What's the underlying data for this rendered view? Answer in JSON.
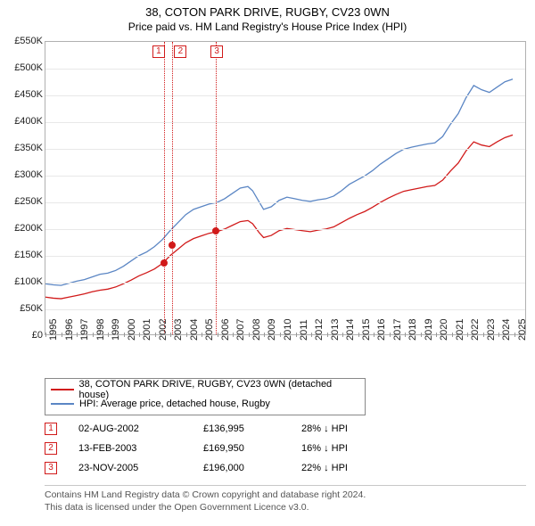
{
  "title_line1": "38, COTON PARK DRIVE, RUGBY, CV23 0WN",
  "title_line2": "Price paid vs. HM Land Registry's House Price Index (HPI)",
  "chart": {
    "type": "line",
    "xlim_year": [
      1995,
      2025.8
    ],
    "ylim": [
      0,
      550000
    ],
    "ytick_step": 50000,
    "ylabels": [
      "£0",
      "£50K",
      "£100K",
      "£150K",
      "£200K",
      "£250K",
      "£300K",
      "£350K",
      "£400K",
      "£450K",
      "£500K",
      "£550K"
    ],
    "xticks": [
      1995,
      1996,
      1997,
      1998,
      1999,
      2000,
      2001,
      2002,
      2003,
      2004,
      2005,
      2006,
      2007,
      2008,
      2009,
      2010,
      2011,
      2012,
      2013,
      2014,
      2015,
      2016,
      2017,
      2018,
      2019,
      2020,
      2021,
      2022,
      2023,
      2024,
      2025
    ],
    "grid_color": "#e8e8e8",
    "axis_color": "#b0b0b0",
    "background_color": "#ffffff",
    "series": [
      {
        "name": "hpi",
        "label": "HPI: Average price, detached house, Rugby",
        "color": "#5b86c4",
        "width": 1.3,
        "data": [
          [
            1995.0,
            95000
          ],
          [
            1995.5,
            93000
          ],
          [
            1996.0,
            92000
          ],
          [
            1996.5,
            96000
          ],
          [
            1997.0,
            100000
          ],
          [
            1997.5,
            103000
          ],
          [
            1998.0,
            108000
          ],
          [
            1998.5,
            113000
          ],
          [
            1999.0,
            115000
          ],
          [
            1999.5,
            120000
          ],
          [
            2000.0,
            128000
          ],
          [
            2000.5,
            138000
          ],
          [
            2001.0,
            148000
          ],
          [
            2001.5,
            155000
          ],
          [
            2002.0,
            165000
          ],
          [
            2002.5,
            178000
          ],
          [
            2003.0,
            195000
          ],
          [
            2003.5,
            210000
          ],
          [
            2004.0,
            225000
          ],
          [
            2004.5,
            235000
          ],
          [
            2005.0,
            240000
          ],
          [
            2005.5,
            245000
          ],
          [
            2006.0,
            248000
          ],
          [
            2006.5,
            255000
          ],
          [
            2007.0,
            265000
          ],
          [
            2007.5,
            275000
          ],
          [
            2008.0,
            278000
          ],
          [
            2008.3,
            270000
          ],
          [
            2008.7,
            250000
          ],
          [
            2009.0,
            235000
          ],
          [
            2009.5,
            240000
          ],
          [
            2010.0,
            252000
          ],
          [
            2010.5,
            258000
          ],
          [
            2011.0,
            255000
          ],
          [
            2011.5,
            252000
          ],
          [
            2012.0,
            250000
          ],
          [
            2012.5,
            253000
          ],
          [
            2013.0,
            255000
          ],
          [
            2013.5,
            260000
          ],
          [
            2014.0,
            270000
          ],
          [
            2014.5,
            282000
          ],
          [
            2015.0,
            290000
          ],
          [
            2015.5,
            298000
          ],
          [
            2016.0,
            308000
          ],
          [
            2016.5,
            320000
          ],
          [
            2017.0,
            330000
          ],
          [
            2017.5,
            340000
          ],
          [
            2018.0,
            348000
          ],
          [
            2018.5,
            352000
          ],
          [
            2019.0,
            355000
          ],
          [
            2019.5,
            358000
          ],
          [
            2020.0,
            360000
          ],
          [
            2020.5,
            372000
          ],
          [
            2021.0,
            395000
          ],
          [
            2021.5,
            415000
          ],
          [
            2022.0,
            445000
          ],
          [
            2022.5,
            468000
          ],
          [
            2023.0,
            460000
          ],
          [
            2023.5,
            455000
          ],
          [
            2024.0,
            465000
          ],
          [
            2024.5,
            475000
          ],
          [
            2025.0,
            480000
          ]
        ]
      },
      {
        "name": "property",
        "label": "38, COTON PARK DRIVE, RUGBY, CV23 0WN (detached house)",
        "color": "#d11a1a",
        "width": 1.3,
        "data": [
          [
            1995.0,
            70000
          ],
          [
            1995.5,
            68000
          ],
          [
            1996.0,
            67000
          ],
          [
            1996.5,
            70000
          ],
          [
            1997.0,
            73000
          ],
          [
            1997.5,
            76000
          ],
          [
            1998.0,
            80000
          ],
          [
            1998.5,
            83000
          ],
          [
            1999.0,
            85000
          ],
          [
            1999.5,
            89000
          ],
          [
            2000.0,
            95000
          ],
          [
            2000.5,
            102000
          ],
          [
            2001.0,
            110000
          ],
          [
            2001.5,
            116000
          ],
          [
            2002.0,
            123000
          ],
          [
            2002.5,
            133000
          ],
          [
            2003.0,
            148000
          ],
          [
            2003.5,
            160000
          ],
          [
            2004.0,
            172000
          ],
          [
            2004.5,
            180000
          ],
          [
            2005.0,
            185000
          ],
          [
            2005.5,
            190000
          ],
          [
            2006.0,
            193000
          ],
          [
            2006.5,
            198000
          ],
          [
            2007.0,
            205000
          ],
          [
            2007.5,
            212000
          ],
          [
            2008.0,
            214000
          ],
          [
            2008.3,
            208000
          ],
          [
            2008.7,
            192000
          ],
          [
            2009.0,
            182000
          ],
          [
            2009.5,
            186000
          ],
          [
            2010.0,
            195000
          ],
          [
            2010.5,
            199000
          ],
          [
            2011.0,
            197000
          ],
          [
            2011.5,
            195000
          ],
          [
            2012.0,
            193000
          ],
          [
            2012.5,
            196000
          ],
          [
            2013.0,
            198000
          ],
          [
            2013.5,
            202000
          ],
          [
            2014.0,
            210000
          ],
          [
            2014.5,
            218000
          ],
          [
            2015.0,
            225000
          ],
          [
            2015.5,
            231000
          ],
          [
            2016.0,
            239000
          ],
          [
            2016.5,
            248000
          ],
          [
            2017.0,
            256000
          ],
          [
            2017.5,
            263000
          ],
          [
            2018.0,
            269000
          ],
          [
            2018.5,
            272000
          ],
          [
            2019.0,
            275000
          ],
          [
            2019.5,
            278000
          ],
          [
            2020.0,
            280000
          ],
          [
            2020.5,
            290000
          ],
          [
            2021.0,
            307000
          ],
          [
            2021.5,
            322000
          ],
          [
            2022.0,
            345000
          ],
          [
            2022.5,
            362000
          ],
          [
            2023.0,
            356000
          ],
          [
            2023.5,
            353000
          ],
          [
            2024.0,
            362000
          ],
          [
            2024.5,
            370000
          ],
          [
            2025.0,
            375000
          ]
        ]
      }
    ],
    "markers": [
      {
        "x": 2002.58,
        "y": 136995,
        "color": "#d11a1a"
      },
      {
        "x": 2003.12,
        "y": 169950,
        "color": "#d11a1a"
      },
      {
        "x": 2005.9,
        "y": 196000,
        "color": "#d11a1a"
      }
    ],
    "flag_lines": [
      {
        "x": 2002.58,
        "num": "1",
        "color": "#d11a1a",
        "label_dx": -13
      },
      {
        "x": 2003.12,
        "num": "2",
        "color": "#d11a1a",
        "label_dx": 2
      },
      {
        "x": 2005.9,
        "num": "3",
        "color": "#d11a1a",
        "label_dx": -6
      }
    ]
  },
  "legend": [
    {
      "color": "#d11a1a",
      "text": "38, COTON PARK DRIVE, RUGBY, CV23 0WN (detached house)"
    },
    {
      "color": "#5b86c4",
      "text": "HPI: Average price, detached house, Rugby"
    }
  ],
  "sales": [
    {
      "n": "1",
      "color": "#d11a1a",
      "date": "02-AUG-2002",
      "price": "£136,995",
      "hpi": "28% ↓ HPI"
    },
    {
      "n": "2",
      "color": "#d11a1a",
      "date": "13-FEB-2003",
      "price": "£169,950",
      "hpi": "16% ↓ HPI"
    },
    {
      "n": "3",
      "color": "#d11a1a",
      "date": "23-NOV-2005",
      "price": "£196,000",
      "hpi": "22% ↓ HPI"
    }
  ],
  "footer_line1": "Contains HM Land Registry data © Crown copyright and database right 2024.",
  "footer_line2": "This data is licensed under the Open Government Licence v3.0."
}
